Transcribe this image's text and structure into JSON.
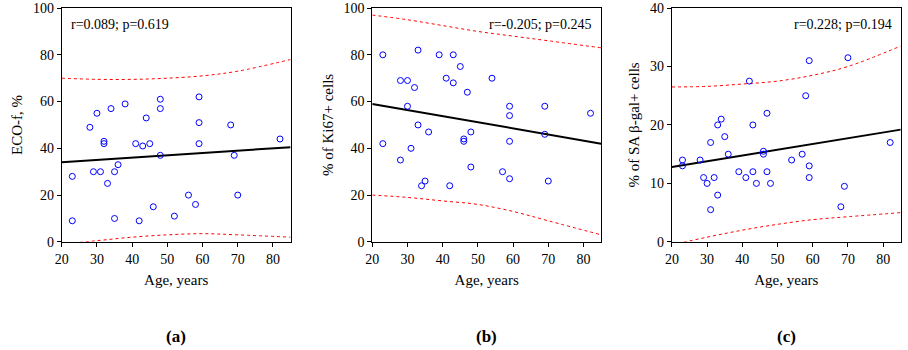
{
  "chart_data": [
    {
      "type": "scatter",
      "label": "(a)",
      "x_label": "Age, years",
      "y_label": "ECO-f, %",
      "annotation": "r=0.089; p=0.619",
      "xlim": [
        20,
        85
      ],
      "ylim": [
        0,
        100
      ],
      "xticks": [
        20,
        30,
        40,
        50,
        60,
        70,
        80
      ],
      "yticks": [
        0,
        20,
        40,
        60,
        80,
        100
      ],
      "points": {
        "color": "#0000ff",
        "marker": "circle-open",
        "x": [
          23,
          23,
          28,
          29,
          30,
          31,
          32,
          32,
          33,
          34,
          35,
          36,
          35,
          38,
          41,
          42,
          43,
          44,
          45,
          46,
          48,
          48,
          48,
          52,
          56,
          58,
          59,
          59,
          59,
          68,
          69,
          70,
          82
        ],
        "values": [
          28,
          9,
          49,
          30,
          55,
          30,
          43,
          42,
          25,
          57,
          10,
          33,
          30,
          59,
          42,
          9,
          41,
          53,
          42,
          15,
          61,
          57,
          37,
          11,
          20,
          16,
          62,
          51,
          42,
          50,
          37,
          20,
          44
        ]
      },
      "fit": {
        "color": "#000000",
        "line_style": "solid",
        "x": [
          20,
          85
        ],
        "values": [
          34,
          40.5
        ]
      },
      "bands": [
        {
          "color": "#ff0000",
          "line_style": "dot",
          "x": [
            20,
            30,
            40,
            50,
            60,
            70,
            85
          ],
          "values": [
            70,
            69.5,
            69.5,
            70,
            71,
            73,
            78
          ]
        },
        {
          "color": "#ff0000",
          "line_style": "dot",
          "x": [
            20,
            30,
            40,
            50,
            60,
            70,
            85
          ],
          "values": [
            -1,
            0.5,
            2,
            3,
            3.5,
            3,
            2
          ]
        }
      ]
    },
    {
      "type": "scatter",
      "label": "(b)",
      "x_label": "Age, years",
      "y_label": "% of Ki67+ cells",
      "annotation": "r=-0.205; p=0.245",
      "xlim": [
        20,
        85
      ],
      "ylim": [
        0,
        100
      ],
      "xticks": [
        20,
        30,
        40,
        50,
        60,
        70,
        80
      ],
      "yticks": [
        0,
        20,
        40,
        60,
        80,
        100
      ],
      "points": {
        "color": "#0000ff",
        "marker": "circle-open",
        "x": [
          23,
          23,
          28,
          28,
          30,
          30,
          31,
          32,
          33,
          33,
          34,
          35,
          36,
          39,
          41,
          42,
          43,
          43,
          45,
          46,
          46,
          47,
          48,
          48,
          54,
          57,
          59,
          59,
          59,
          59,
          69,
          69,
          70,
          82
        ],
        "values": [
          80,
          42,
          69,
          35,
          69,
          58,
          40,
          66,
          82,
          50,
          24,
          26,
          47,
          80,
          70,
          24,
          80,
          68,
          75,
          44,
          43,
          64,
          47,
          32,
          70,
          30,
          58,
          54,
          43,
          27,
          58,
          46,
          26,
          55
        ]
      },
      "fit": {
        "color": "#000000",
        "line_style": "solid",
        "x": [
          20,
          85
        ],
        "values": [
          59,
          42
        ]
      },
      "bands": [
        {
          "color": "#ff0000",
          "line_style": "dot",
          "x": [
            20,
            30,
            40,
            50,
            60,
            70,
            85
          ],
          "values": [
            97,
            95,
            92.5,
            90,
            88,
            86,
            83
          ]
        },
        {
          "color": "#ff0000",
          "line_style": "dot",
          "x": [
            20,
            30,
            40,
            50,
            60,
            70,
            85
          ],
          "values": [
            20,
            19,
            17.5,
            16,
            13,
            9,
            3
          ]
        }
      ]
    },
    {
      "type": "scatter",
      "label": "(c)",
      "x_label": "Age, years",
      "y_label": "% of SA β-gal+ cells",
      "annotation": "r=0.228; p=0.194",
      "xlim": [
        20,
        85
      ],
      "ylim": [
        0,
        40
      ],
      "xticks": [
        20,
        30,
        40,
        50,
        60,
        70,
        80
      ],
      "yticks": [
        0,
        10,
        20,
        30,
        40
      ],
      "points": {
        "color": "#0000ff",
        "marker": "circle-open",
        "x": [
          23,
          23,
          28,
          29,
          30,
          31,
          31,
          32,
          33,
          33,
          34,
          35,
          36,
          39,
          41,
          42,
          43,
          43,
          44,
          46,
          46,
          47,
          47,
          48,
          54,
          57,
          58,
          59,
          59,
          59,
          68,
          69,
          70,
          82
        ],
        "values": [
          14,
          13,
          14,
          11,
          10,
          5.5,
          17,
          11,
          20,
          8,
          21,
          18,
          15,
          12,
          11,
          27.5,
          20,
          12,
          10,
          15.5,
          15,
          22,
          12,
          10,
          14,
          15,
          25,
          31,
          13,
          11,
          6,
          9.5,
          31.5,
          17
        ]
      },
      "fit": {
        "color": "#000000",
        "line_style": "solid",
        "x": [
          20,
          85
        ],
        "values": [
          12.8,
          19.2
        ]
      },
      "bands": [
        {
          "color": "#ff0000",
          "line_style": "dot",
          "x": [
            20,
            30,
            40,
            50,
            60,
            70,
            85
          ],
          "values": [
            26.5,
            26.6,
            27,
            27.5,
            28.5,
            30,
            33.5
          ]
        },
        {
          "color": "#ff0000",
          "line_style": "dot",
          "x": [
            20,
            30,
            40,
            50,
            60,
            70,
            85
          ],
          "values": [
            -0.5,
            0.8,
            2,
            3,
            3.8,
            4.3,
            5
          ]
        }
      ]
    }
  ]
}
